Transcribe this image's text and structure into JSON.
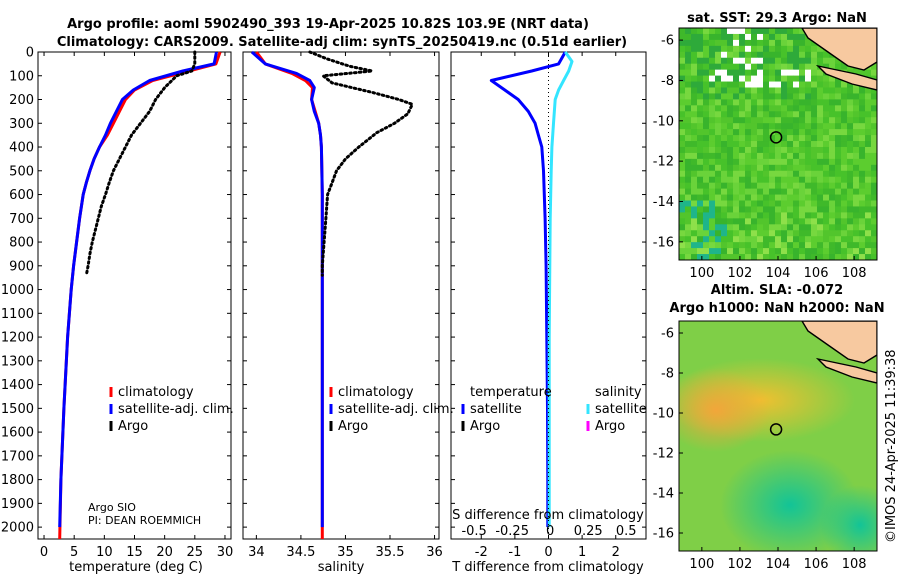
{
  "title_line1": "Argo profile: aoml 5902490_393 19-Apr-2025 10.82S 103.9E (NRT data)",
  "title_line2": "Climatology: CARS2009. Satellite-adj clim: synTS_20250419.nc (0.51d earlier)",
  "depth_ticks": [
    "0",
    "100",
    "200",
    "300",
    "400",
    "500",
    "600",
    "700",
    "800",
    "900",
    "1000",
    "1100",
    "1200",
    "1300",
    "1400",
    "1500",
    "1600",
    "1700",
    "1800",
    "1900",
    "2000"
  ],
  "attribution": {
    "line1": "Argo SIO",
    "line2": "PI: DEAN ROEMMICH"
  },
  "watermark": "©IMOS 24-Apr-2025 11:39:38",
  "colors": {
    "clim": "#ff0000",
    "sat": "#0000ff",
    "argo": "#000000",
    "sat_s": "#33e5ff",
    "argo_s": "#ff00ff"
  },
  "chart_data": [
    {
      "type": "line",
      "name": "temperature",
      "xlabel": "temperature (deg C)",
      "xlim": [
        -1,
        31
      ],
      "ylim": [
        2050,
        0
      ],
      "xticks": [
        0,
        5,
        10,
        15,
        20,
        25,
        30
      ],
      "xtick_labels": [
        "0",
        "5",
        "10",
        "15",
        "20",
        "25",
        "30"
      ],
      "legend": [
        "climatology",
        "satellite-adj. clim.",
        "Argo"
      ],
      "series": [
        {
          "name": "climatology",
          "style": "solid",
          "color": "#ff0000",
          "x": [
            29.2,
            28.5,
            24,
            18,
            15,
            13.5,
            12.5,
            11.5,
            10.5,
            9.2,
            8.3,
            7.6,
            7.0,
            6.5,
            5.9,
            5.4,
            4.9,
            4.5,
            4.2,
            3.9,
            3.3,
            2.8,
            2.6
          ],
          "y": [
            0,
            50,
            80,
            120,
            160,
            200,
            250,
            300,
            350,
            400,
            450,
            500,
            550,
            600,
            700,
            800,
            900,
            1000,
            1100,
            1200,
            1500,
            1800,
            2050
          ]
        },
        {
          "name": "satellite-adj. clim.",
          "style": "solid",
          "color": "#0000ff",
          "x": [
            28.6,
            28.2,
            23,
            17.5,
            14.8,
            13.0,
            12.0,
            11.0,
            10.2,
            9.2,
            8.3,
            7.6,
            7.0,
            6.5,
            5.9,
            5.4,
            4.9,
            4.5,
            4.2,
            3.9,
            3.3,
            2.8,
            2.6
          ],
          "y": [
            0,
            50,
            80,
            120,
            160,
            200,
            250,
            300,
            350,
            400,
            450,
            500,
            550,
            600,
            700,
            800,
            900,
            1000,
            1100,
            1200,
            1500,
            1800,
            2000
          ]
        },
        {
          "name": "Argo",
          "style": "dotted",
          "color": "#000000",
          "x": [
            25.0,
            25.0,
            24.5,
            22.0,
            20.0,
            18.5,
            17.5,
            16.0,
            14.5,
            13.5,
            12.5,
            11.5,
            10.8,
            10.2,
            9.5,
            9.0,
            8.5,
            8.0,
            7.6,
            7.3,
            7.0
          ],
          "y": [
            0,
            50,
            80,
            100,
            150,
            200,
            250,
            300,
            350,
            400,
            450,
            500,
            550,
            600,
            650,
            700,
            750,
            800,
            850,
            900,
            940
          ]
        }
      ]
    },
    {
      "type": "line",
      "name": "salinity",
      "xlabel": "salinity",
      "xlim": [
        33.85,
        36.05
      ],
      "ylim": [
        2050,
        0
      ],
      "xticks": [
        34,
        34.5,
        35,
        35.5,
        36
      ],
      "xtick_labels": [
        "34",
        "34.5",
        "35",
        "35.5",
        "36"
      ],
      "legend": [
        "climatology",
        "satellite-adj. clim.",
        "Argo"
      ],
      "series": [
        {
          "name": "climatology",
          "style": "solid",
          "color": "#ff0000",
          "x": [
            34.0,
            34.1,
            34.4,
            34.55,
            34.63,
            34.62,
            34.66,
            34.7,
            34.72,
            34.73,
            34.74,
            34.74,
            34.74,
            34.74,
            34.74
          ],
          "y": [
            0,
            50,
            90,
            120,
            150,
            200,
            250,
            300,
            350,
            400,
            600,
            900,
            1200,
            1600,
            2050
          ]
        },
        {
          "name": "satellite-adj. clim.",
          "style": "solid",
          "color": "#0000ff",
          "x": [
            33.95,
            34.1,
            34.45,
            34.6,
            34.65,
            34.62,
            34.65,
            34.7,
            34.72,
            34.73,
            34.74,
            34.74,
            34.74,
            34.74,
            34.74
          ],
          "y": [
            0,
            50,
            90,
            120,
            150,
            200,
            250,
            300,
            350,
            400,
            600,
            900,
            1200,
            1600,
            2000
          ]
        },
        {
          "name": "Argo",
          "style": "dotted",
          "color": "#000000",
          "x": [
            34.6,
            34.8,
            35.05,
            35.3,
            34.75,
            34.85,
            35.3,
            35.6,
            35.75,
            35.7,
            35.55,
            35.35,
            35.15,
            35.0,
            34.9,
            34.85,
            34.8,
            34.78,
            34.76,
            34.74,
            34.74
          ],
          "y": [
            0,
            30,
            60,
            80,
            100,
            130,
            170,
            200,
            220,
            260,
            300,
            340,
            400,
            450,
            500,
            550,
            600,
            700,
            800,
            900,
            940
          ]
        }
      ]
    },
    {
      "type": "line",
      "name": "difference",
      "xlabel": "T difference from climatology",
      "xlabel_top": "S difference from climatology",
      "xlim": [
        -2.9,
        2.9
      ],
      "ylim": [
        2050,
        0
      ],
      "xticks": [
        -2,
        -1,
        0,
        1,
        2
      ],
      "xtick_labels": [
        "-2",
        "-1",
        "0",
        "1",
        "2"
      ],
      "top_tick_positions": [
        -2,
        -1,
        0,
        1,
        2
      ],
      "top_tick_labels": [
        "-0.5",
        "-0.25",
        "0",
        "0.25",
        "0.5"
      ],
      "legend_left_heading": "temperature",
      "legend_right_heading": "salinity",
      "legend_left": [
        "satellite",
        "Argo"
      ],
      "legend_right": [
        "satellite",
        "Argo"
      ],
      "series": [
        {
          "name": "T satellite",
          "style": "solid",
          "color": "#0000ff",
          "x": [
            0.5,
            0.3,
            -0.5,
            -1.7,
            -1.3,
            -0.9,
            -0.6,
            -0.4,
            -0.3,
            -0.2,
            -0.15,
            -0.1,
            -0.07,
            -0.05,
            -0.03,
            -0.02,
            -0.02
          ],
          "y": [
            0,
            50,
            80,
            120,
            160,
            200,
            250,
            300,
            350,
            400,
            500,
            700,
            900,
            1200,
            1500,
            1800,
            2000
          ]
        },
        {
          "name": "S satellite",
          "style": "solid",
          "color": "#33e5ff",
          "x": [
            0.5,
            0.7,
            0.6,
            0.45,
            0.3,
            0.2,
            0.15,
            0.1,
            0.08,
            0.05,
            0.04,
            0.02,
            0.02,
            0.02
          ],
          "y": [
            0,
            40,
            80,
            120,
            160,
            200,
            300,
            400,
            500,
            700,
            900,
            1200,
            1600,
            2000
          ]
        },
        {
          "name": "zero line",
          "style": "dotted",
          "color": "#000000",
          "x": [
            0,
            0
          ],
          "y": [
            0,
            2050
          ]
        }
      ]
    },
    {
      "type": "heatmap",
      "name": "sst-map",
      "title": "sat. SST: 29.3 Argo: NaN",
      "xlim": [
        98.8,
        109.2
      ],
      "ylim": [
        -16.9,
        -5.4
      ],
      "xticks": [
        100,
        102,
        104,
        106,
        108
      ],
      "yticks": [
        -6,
        -8,
        -10,
        -12,
        -14,
        -16
      ],
      "xtick_labels": [
        "100",
        "102",
        "104",
        "106",
        "108"
      ],
      "ytick_labels": [
        "-6",
        "-8",
        "-10",
        "-12",
        "-14",
        "-16"
      ],
      "float_position": [
        103.9,
        -10.82
      ]
    },
    {
      "type": "heatmap",
      "name": "sla-map",
      "title_line1": "Altim. SLA: -0.072",
      "title_line2": "Argo h1000: NaN h2000: NaN",
      "xlim": [
        98.8,
        109.2
      ],
      "ylim": [
        -16.9,
        -5.4
      ],
      "xticks": [
        100,
        102,
        104,
        106,
        108
      ],
      "yticks": [
        -6,
        -8,
        -10,
        -12,
        -14,
        -16
      ],
      "xtick_labels": [
        "100",
        "102",
        "104",
        "106",
        "108"
      ],
      "ytick_labels": [
        "-6",
        "-8",
        "-10",
        "-12",
        "-14",
        "-16"
      ],
      "float_position": [
        103.9,
        -10.82
      ]
    }
  ]
}
